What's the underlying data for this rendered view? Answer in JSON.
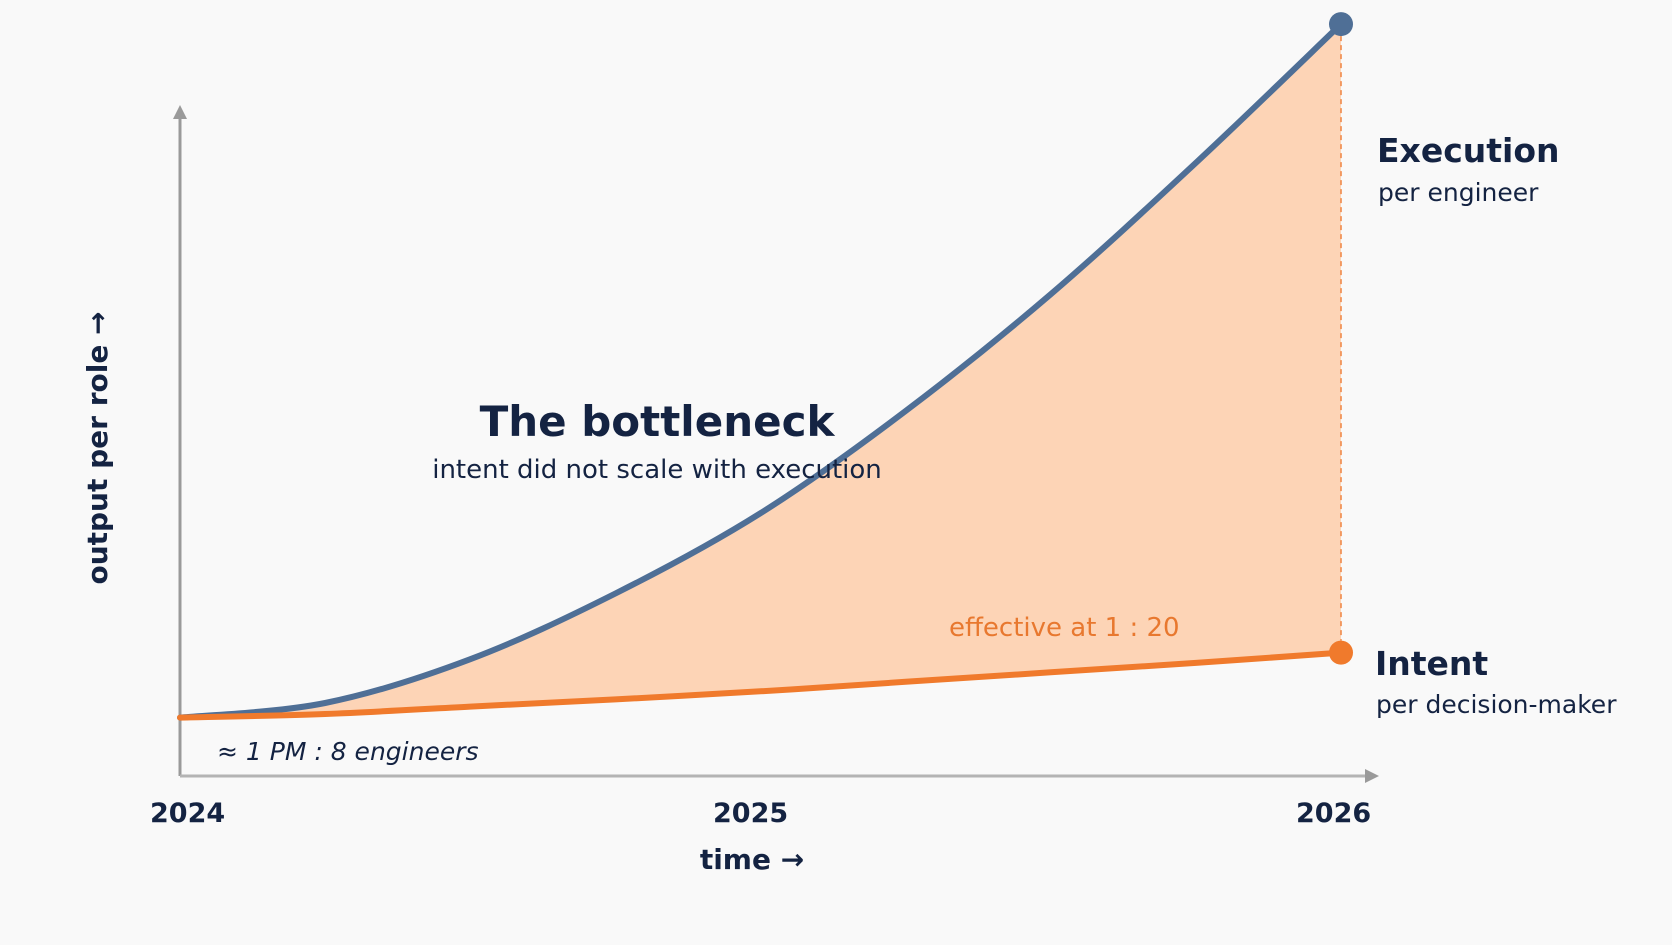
{
  "chart_data": {
    "type": "area",
    "title": "The bottleneck",
    "subtitle": "intent did not scale with execution",
    "xlabel": "time →",
    "ylabel": "output per role →",
    "x_ticks": [
      "2024",
      "2025",
      "2026"
    ],
    "xlim": [
      2024,
      2026
    ],
    "ylim": [
      0,
      100
    ],
    "grid": false,
    "series": [
      {
        "name": "Execution",
        "sublabel": "per engineer",
        "color": "#4f6f96",
        "x": [
          2024,
          2024.25,
          2024.5,
          2024.75,
          2025,
          2025.25,
          2025.5,
          2025.75,
          2026
        ],
        "y": [
          8,
          10,
          16,
          25,
          36,
          50,
          66,
          84,
          103
        ]
      },
      {
        "name": "Intent",
        "sublabel": "per decision-maker",
        "color": "#f07a2c",
        "x": [
          2024,
          2024.25,
          2024.5,
          2024.75,
          2025,
          2025.25,
          2025.5,
          2025.75,
          2026
        ],
        "y": [
          8,
          8.5,
          9.5,
          10.5,
          11.6,
          12.9,
          14.2,
          15.5,
          16.9
        ]
      }
    ],
    "gap_fill_color": "#fdd4b6",
    "annotations": [
      {
        "text": "effective at 1 : 20",
        "color": "#e8782f"
      },
      {
        "text": "≈ 1 PM : 8 engineers"
      }
    ]
  }
}
